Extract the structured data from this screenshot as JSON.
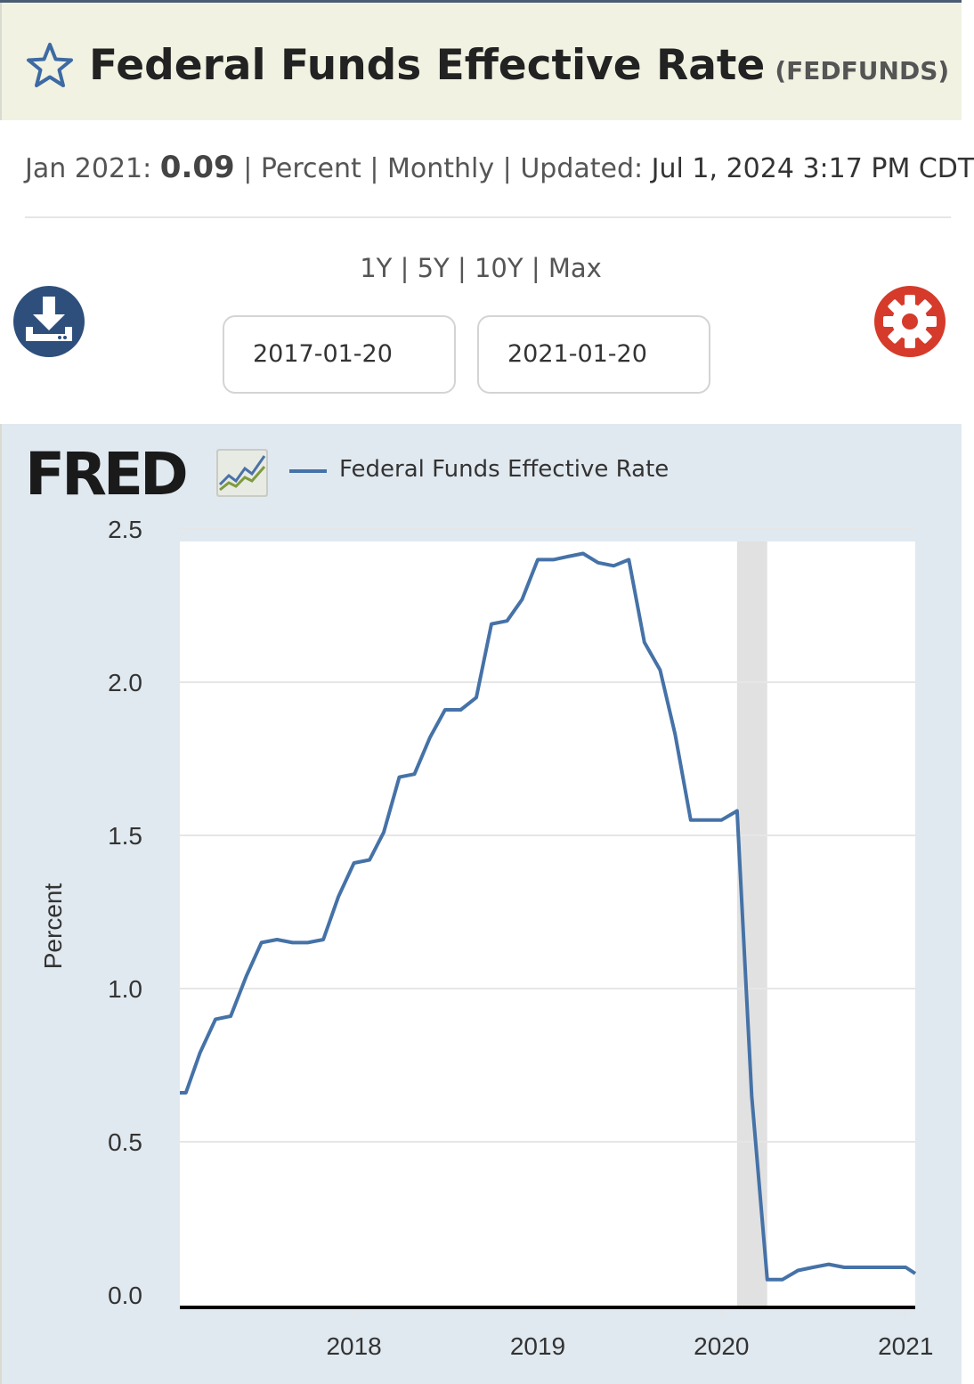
{
  "header": {
    "title": "Federal Funds Effective Rate",
    "series_code": "(FEDFUNDS)"
  },
  "meta": {
    "period": "Jan 2021:",
    "value": "0.09",
    "units": "Percent",
    "frequency": "Monthly",
    "updated_label": "Updated:",
    "updated_value": "Jul 1, 2024 3:17 PM CDT"
  },
  "range_links": [
    "1Y",
    "5Y",
    "10Y",
    "Max"
  ],
  "date_range": {
    "start": "2017-01-20",
    "end": "2021-01-20"
  },
  "branding": {
    "logo": "FRED"
  },
  "icons": {
    "favorite": "star-icon",
    "download": "download-icon",
    "settings": "gear-icon",
    "chart": "fred-chart-icon"
  },
  "colors": {
    "series": "#4572a7",
    "recession": "#e1e1e1",
    "settings": "#d63a2a",
    "download": "#2e4f7c",
    "title_bg": "#f1f2e2",
    "chart_bg": "#e1e9f0"
  },
  "chart_data": {
    "type": "line",
    "ylabel": "Percent",
    "xlabel": "",
    "legend": {
      "position": "top-left",
      "entries": [
        "Federal Funds Effective Rate"
      ]
    },
    "ylim": [
      0,
      2.5
    ],
    "xlim": [
      "2017-01-20",
      "2021-01-20"
    ],
    "y_ticks": [
      "0.0",
      "0.5",
      "1.0",
      "1.5",
      "2.0",
      "2.5"
    ],
    "x_ticks": [
      "2018",
      "2019",
      "2020",
      "2021"
    ],
    "grid": true,
    "recession_shading": [
      [
        "2020-02-01",
        "2020-04-01"
      ]
    ],
    "series": [
      {
        "name": "Federal Funds Effective Rate",
        "x": [
          "2017-02-01",
          "2017-03-01",
          "2017-04-01",
          "2017-05-01",
          "2017-06-01",
          "2017-07-01",
          "2017-08-01",
          "2017-09-01",
          "2017-10-01",
          "2017-11-01",
          "2017-12-01",
          "2018-01-01",
          "2018-02-01",
          "2018-03-01",
          "2018-04-01",
          "2018-05-01",
          "2018-06-01",
          "2018-07-01",
          "2018-08-01",
          "2018-09-01",
          "2018-10-01",
          "2018-11-01",
          "2018-12-01",
          "2019-01-01",
          "2019-02-01",
          "2019-03-01",
          "2019-04-01",
          "2019-05-01",
          "2019-06-01",
          "2019-07-01",
          "2019-08-01",
          "2019-09-01",
          "2019-10-01",
          "2019-11-01",
          "2019-12-01",
          "2020-01-01",
          "2020-02-01",
          "2020-03-01",
          "2020-04-01",
          "2020-05-01",
          "2020-06-01",
          "2020-07-01",
          "2020-08-01",
          "2020-09-01",
          "2020-10-01",
          "2020-11-01",
          "2020-12-01",
          "2021-01-01"
        ],
        "values": [
          0.66,
          0.79,
          0.9,
          0.91,
          1.04,
          1.15,
          1.16,
          1.15,
          1.15,
          1.16,
          1.3,
          1.41,
          1.42,
          1.51,
          1.69,
          1.7,
          1.82,
          1.91,
          1.91,
          1.95,
          2.19,
          2.2,
          2.27,
          2.4,
          2.4,
          2.41,
          2.42,
          2.39,
          2.38,
          2.4,
          2.13,
          2.04,
          1.83,
          1.55,
          1.55,
          1.55,
          1.58,
          0.65,
          0.05,
          0.05,
          0.08,
          0.09,
          0.1,
          0.09,
          0.09,
          0.09,
          0.09,
          0.09
        ]
      }
    ]
  }
}
